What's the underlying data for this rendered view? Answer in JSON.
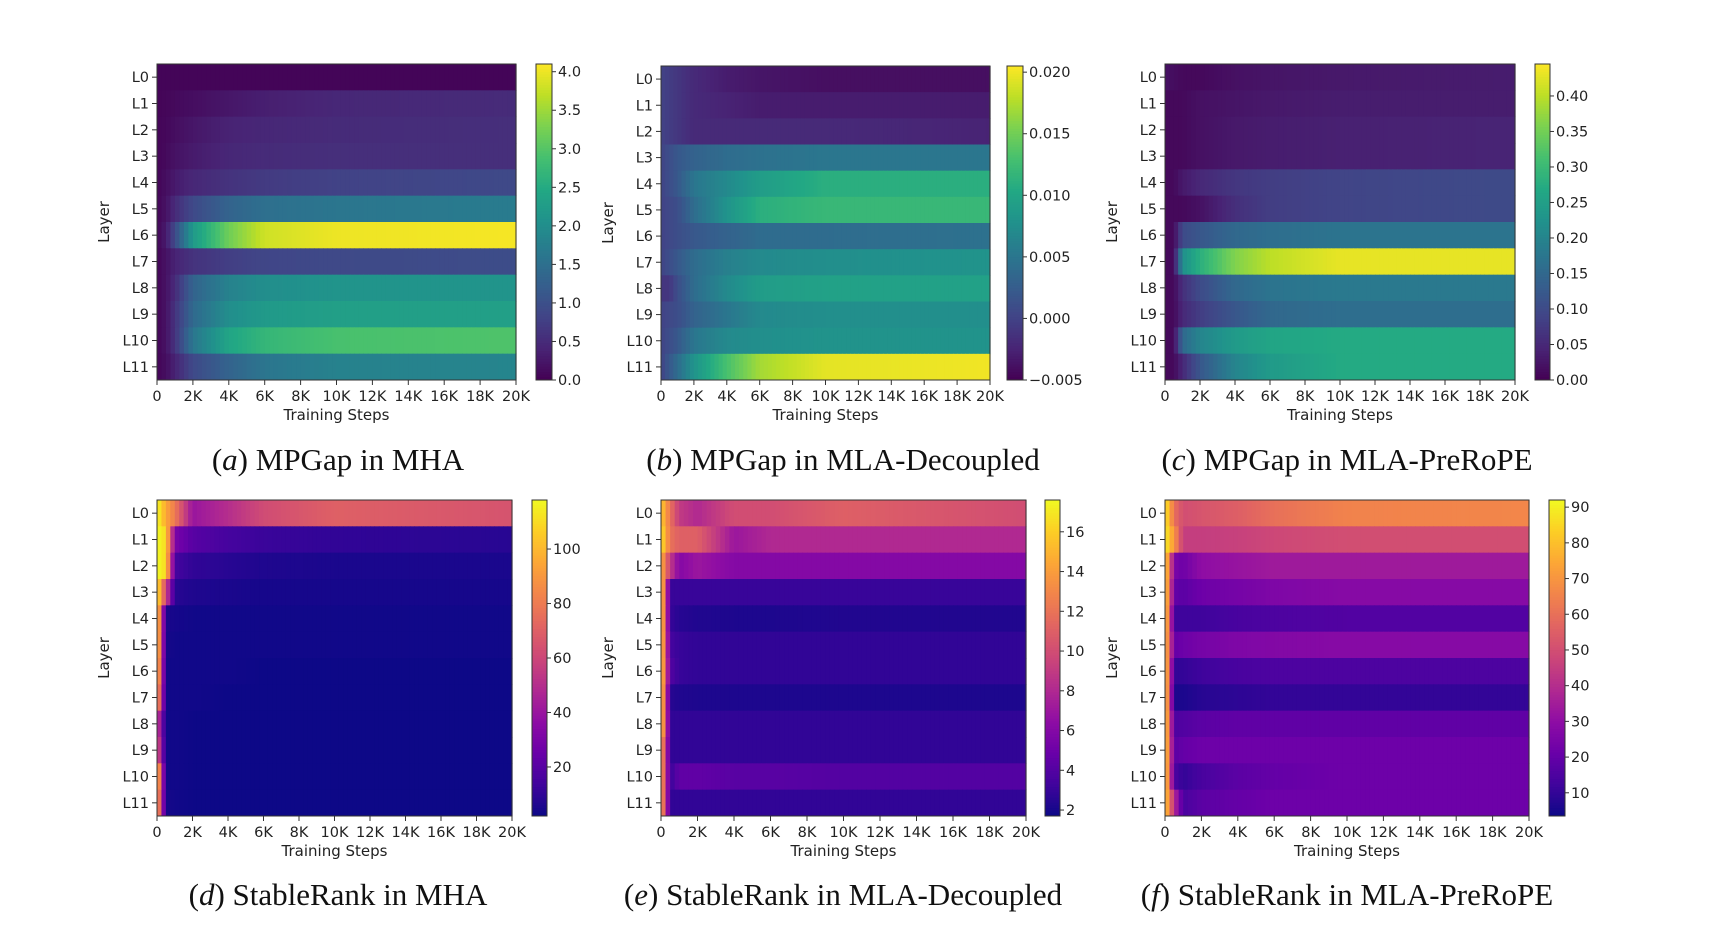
{
  "colors": {
    "viridis": [
      "#440154",
      "#482475",
      "#414487",
      "#355f8d",
      "#2a788e",
      "#21918c",
      "#22a884",
      "#44bf70",
      "#7ad151",
      "#bddf26",
      "#fde725"
    ],
    "plasma": [
      "#0d0887",
      "#41049d",
      "#6a00a8",
      "#8f0da4",
      "#b12a90",
      "#cc4778",
      "#e16462",
      "#f2844b",
      "#fca636",
      "#fcce25",
      "#f0f921"
    ]
  },
  "chart_data": [
    {
      "type": "heatmap",
      "caption_label": "a",
      "caption_text": "MPGap in MHA",
      "colormap": "viridis",
      "xlabel": "Training Steps",
      "ylabel": "Layer",
      "layers": [
        "L0",
        "L1",
        "L2",
        "L3",
        "L4",
        "L5",
        "L6",
        "L7",
        "L8",
        "L9",
        "L10",
        "L11"
      ],
      "xlim": [
        0,
        20000
      ],
      "xticks": [
        0,
        2000,
        4000,
        6000,
        8000,
        10000,
        12000,
        14000,
        16000,
        18000,
        20000
      ],
      "xtick_labels": [
        "0",
        "2K",
        "4K",
        "6K",
        "8K",
        "10K",
        "12K",
        "14K",
        "16K",
        "18K",
        "20K"
      ],
      "steps": [
        0,
        500,
        1000,
        2000,
        4000,
        6000,
        10000,
        20000
      ],
      "clim": [
        0,
        4.1
      ],
      "cbar_ticks": [
        0,
        0.5,
        1,
        1.5,
        2,
        2.5,
        3,
        3.5,
        4
      ],
      "cbar_tick_labels": [
        "0.0",
        "0.5",
        "1.0",
        "1.5",
        "2.0",
        "2.5",
        "3.0",
        "3.5",
        "4.0"
      ],
      "values": [
        [
          0.05,
          0.05,
          0.05,
          0.05,
          0.05,
          0.05,
          0.05,
          0.05
        ],
        [
          0.05,
          0.06,
          0.1,
          0.15,
          0.25,
          0.35,
          0.45,
          0.5
        ],
        [
          0.05,
          0.08,
          0.15,
          0.25,
          0.4,
          0.45,
          0.5,
          0.55
        ],
        [
          0.05,
          0.1,
          0.2,
          0.3,
          0.45,
          0.5,
          0.55,
          0.55
        ],
        [
          0.05,
          0.15,
          0.3,
          0.45,
          0.6,
          0.7,
          0.8,
          0.9
        ],
        [
          0.05,
          0.2,
          0.5,
          0.9,
          1.3,
          1.5,
          1.6,
          1.7
        ],
        [
          0.05,
          0.3,
          0.9,
          2.2,
          3.2,
          3.8,
          4.0,
          4.05
        ],
        [
          0.05,
          0.2,
          0.4,
          0.6,
          0.75,
          0.85,
          0.9,
          0.95
        ],
        [
          0.05,
          0.2,
          0.5,
          1.3,
          1.8,
          2.0,
          2.1,
          2.1
        ],
        [
          0.05,
          0.2,
          0.6,
          1.4,
          2.0,
          2.2,
          2.3,
          2.3
        ],
        [
          0.05,
          0.2,
          0.6,
          1.6,
          2.4,
          2.7,
          2.9,
          2.95
        ],
        [
          0.05,
          0.15,
          0.4,
          0.9,
          1.3,
          1.6,
          1.8,
          1.85
        ]
      ]
    },
    {
      "type": "heatmap",
      "caption_label": "b",
      "caption_text": "MPGap in MLA-Decoupled",
      "colormap": "viridis",
      "xlabel": "Training Steps",
      "ylabel": "Layer",
      "layers": [
        "L0",
        "L1",
        "L2",
        "L3",
        "L4",
        "L5",
        "L6",
        "L7",
        "L8",
        "L9",
        "L10",
        "L11"
      ],
      "xlim": [
        0,
        20000
      ],
      "xticks": [
        0,
        2000,
        4000,
        6000,
        8000,
        10000,
        12000,
        14000,
        16000,
        18000,
        20000
      ],
      "xtick_labels": [
        "0",
        "2K",
        "4K",
        "6K",
        "8K",
        "10K",
        "12K",
        "14K",
        "16K",
        "18K",
        "20K"
      ],
      "steps": [
        0,
        500,
        1000,
        2000,
        4000,
        6000,
        10000,
        20000
      ],
      "clim": [
        -0.005,
        0.0205
      ],
      "cbar_ticks": [
        -0.005,
        0,
        0.005,
        0.01,
        0.015,
        0.02
      ],
      "cbar_tick_labels": [
        "−0.005",
        "0.000",
        "0.005",
        "0.010",
        "0.015",
        "0.020"
      ],
      "values": [
        [
          0,
          -0.0005,
          -0.001,
          -0.002,
          -0.003,
          -0.0035,
          -0.004,
          -0.004
        ],
        [
          0,
          -0.0005,
          -0.001,
          -0.002,
          -0.0025,
          -0.003,
          -0.003,
          -0.003
        ],
        [
          0,
          -0.0005,
          -0.001,
          -0.002,
          -0.002,
          -0.002,
          -0.002,
          -0.0025
        ],
        [
          0,
          0.001,
          0.002,
          0.003,
          0.004,
          0.0045,
          0.005,
          0.005
        ],
        [
          0,
          0.001,
          0.002,
          0.005,
          0.007,
          0.009,
          0.011,
          0.011
        ],
        [
          0,
          0.0005,
          0.001,
          0.004,
          0.008,
          0.011,
          0.012,
          0.012
        ],
        [
          0,
          0.0005,
          0.001,
          0.002,
          0.003,
          0.004,
          0.004,
          0.0045
        ],
        [
          0,
          0.001,
          0.002,
          0.004,
          0.006,
          0.007,
          0.0075,
          0.008
        ],
        [
          -0.001,
          -0.001,
          0.001,
          0.004,
          0.007,
          0.009,
          0.0095,
          0.0095
        ],
        [
          0,
          0.0005,
          0.001,
          0.003,
          0.005,
          0.007,
          0.0075,
          0.0075
        ],
        [
          0,
          0.001,
          0.002,
          0.005,
          0.007,
          0.0075,
          0.008,
          0.008
        ],
        [
          0,
          0.002,
          0.004,
          0.008,
          0.013,
          0.017,
          0.0195,
          0.02
        ]
      ]
    },
    {
      "type": "heatmap",
      "caption_label": "c",
      "caption_text": "MPGap in MLA-PreRoPE",
      "colormap": "viridis",
      "xlabel": "Training Steps",
      "ylabel": "Layer",
      "layers": [
        "L0",
        "L1",
        "L2",
        "L3",
        "L4",
        "L5",
        "L6",
        "L7",
        "L8",
        "L9",
        "L10",
        "L11"
      ],
      "xlim": [
        0,
        20000
      ],
      "xticks": [
        0,
        2000,
        4000,
        6000,
        8000,
        10000,
        12000,
        14000,
        16000,
        18000,
        20000
      ],
      "xtick_labels": [
        "0",
        "2K",
        "4K",
        "6K",
        "8K",
        "10K",
        "12K",
        "14K",
        "16K",
        "18K",
        "20K"
      ],
      "steps": [
        0,
        500,
        1000,
        2000,
        4000,
        6000,
        10000,
        20000
      ],
      "clim": [
        0,
        0.445
      ],
      "cbar_ticks": [
        0,
        0.05,
        0.1,
        0.15,
        0.2,
        0.25,
        0.3,
        0.35,
        0.4
      ],
      "cbar_tick_labels": [
        "0.00",
        "0.05",
        "0.10",
        "0.15",
        "0.20",
        "0.25",
        "0.30",
        "0.35",
        "0.40"
      ],
      "values": [
        [
          0.02,
          0.015,
          0.01,
          0.01,
          0.02,
          0.025,
          0.03,
          0.035
        ],
        [
          0.01,
          0.01,
          0.01,
          0.02,
          0.025,
          0.03,
          0.035,
          0.035
        ],
        [
          0.01,
          0.01,
          0.01,
          0.02,
          0.03,
          0.035,
          0.04,
          0.045
        ],
        [
          0.01,
          0.01,
          0.01,
          0.02,
          0.03,
          0.035,
          0.04,
          0.045
        ],
        [
          0.01,
          0.01,
          0.03,
          0.05,
          0.07,
          0.08,
          0.09,
          0.1
        ],
        [
          0.01,
          0.01,
          0.01,
          0.02,
          0.06,
          0.08,
          0.09,
          0.1
        ],
        [
          0.01,
          0.01,
          0.1,
          0.12,
          0.15,
          0.16,
          0.17,
          0.17
        ],
        [
          0.01,
          0.01,
          0.22,
          0.28,
          0.36,
          0.4,
          0.43,
          0.43
        ],
        [
          0.01,
          0.01,
          0.06,
          0.1,
          0.15,
          0.17,
          0.18,
          0.18
        ],
        [
          0.01,
          0.01,
          0.05,
          0.08,
          0.12,
          0.15,
          0.16,
          0.16
        ],
        [
          0.01,
          0.01,
          0.15,
          0.2,
          0.24,
          0.26,
          0.27,
          0.27
        ],
        [
          0.01,
          0.01,
          0.05,
          0.12,
          0.2,
          0.24,
          0.27,
          0.27
        ]
      ]
    },
    {
      "type": "heatmap",
      "caption_label": "d",
      "caption_text": "StableRank in MHA",
      "colormap": "plasma",
      "xlabel": "Training Steps",
      "ylabel": "Layer",
      "layers": [
        "L0",
        "L1",
        "L2",
        "L3",
        "L4",
        "L5",
        "L6",
        "L7",
        "L8",
        "L9",
        "L10",
        "L11"
      ],
      "xlim": [
        0,
        20000
      ],
      "xticks": [
        0,
        2000,
        4000,
        6000,
        8000,
        10000,
        12000,
        14000,
        16000,
        18000,
        20000
      ],
      "xtick_labels": [
        "0",
        "2K",
        "4K",
        "6K",
        "8K",
        "10K",
        "12K",
        "14K",
        "16K",
        "18K",
        "20K"
      ],
      "steps": [
        0,
        500,
        1000,
        2000,
        4000,
        6000,
        10000,
        20000
      ],
      "clim": [
        2,
        118
      ],
      "cbar_ticks": [
        20,
        40,
        60,
        80,
        100
      ],
      "cbar_tick_labels": [
        "20",
        "40",
        "60",
        "80",
        "100"
      ],
      "values": [
        [
          118,
          95,
          80,
          40,
          50,
          62,
          70,
          65
        ],
        [
          118,
          110,
          30,
          20,
          15,
          12,
          10,
          8
        ],
        [
          118,
          110,
          15,
          10,
          8,
          6,
          5,
          5
        ],
        [
          115,
          60,
          8,
          6,
          5,
          4,
          4,
          4
        ],
        [
          115,
          5,
          4,
          3,
          3,
          3,
          3,
          3
        ],
        [
          115,
          4,
          3,
          3,
          3,
          3,
          3,
          3
        ],
        [
          110,
          3,
          3,
          3,
          3,
          2,
          2,
          2
        ],
        [
          100,
          3,
          3,
          3,
          2,
          2,
          2,
          2
        ],
        [
          60,
          3,
          3,
          2,
          2,
          2,
          2,
          2
        ],
        [
          70,
          3,
          3,
          2,
          2,
          2,
          2,
          2
        ],
        [
          110,
          3,
          3,
          2,
          2,
          2,
          2,
          2
        ],
        [
          100,
          4,
          3,
          2,
          2,
          2,
          2,
          2
        ]
      ]
    },
    {
      "type": "heatmap",
      "caption_label": "e",
      "caption_text": "StableRank in MLA-Decoupled",
      "colormap": "plasma",
      "xlabel": "Training Steps",
      "ylabel": "Layer",
      "layers": [
        "L0",
        "L1",
        "L2",
        "L3",
        "L4",
        "L5",
        "L6",
        "L7",
        "L8",
        "L9",
        "L10",
        "L11"
      ],
      "xlim": [
        0,
        20000
      ],
      "xticks": [
        0,
        2000,
        4000,
        6000,
        8000,
        10000,
        12000,
        14000,
        16000,
        18000,
        20000
      ],
      "xtick_labels": [
        "0",
        "2K",
        "4K",
        "6K",
        "8K",
        "10K",
        "12K",
        "14K",
        "16K",
        "18K",
        "20K"
      ],
      "steps": [
        0,
        500,
        1000,
        2000,
        4000,
        6000,
        10000,
        20000
      ],
      "clim": [
        1.7,
        17.6
      ],
      "cbar_ticks": [
        2,
        4,
        6,
        8,
        10,
        12,
        14,
        16
      ],
      "cbar_tick_labels": [
        "2",
        "4",
        "6",
        "8",
        "10",
        "12",
        "14",
        "16"
      ],
      "values": [
        [
          16,
          12,
          9,
          8,
          10,
          10,
          11,
          10
        ],
        [
          17,
          12,
          11,
          11,
          7,
          8,
          8,
          8
        ],
        [
          15,
          9,
          6,
          7,
          6,
          6,
          6,
          6
        ],
        [
          17,
          3,
          3,
          3,
          3,
          3,
          3,
          3
        ],
        [
          17,
          3,
          2.5,
          2.3,
          2.2,
          2.2,
          2.3,
          2.3
        ],
        [
          17,
          3.5,
          3,
          2.8,
          2.8,
          2.8,
          2.8,
          2.8
        ],
        [
          17,
          4,
          3,
          2.8,
          2.8,
          2.8,
          2.8,
          2.8
        ],
        [
          17,
          2.5,
          2.3,
          2.2,
          2.2,
          2.2,
          2.2,
          2.2
        ],
        [
          17,
          2.8,
          2.8,
          2.8,
          2.8,
          2.8,
          2.8,
          2.8
        ],
        [
          15,
          2.8,
          2.8,
          2.8,
          2.8,
          2.8,
          2.8,
          2.8
        ],
        [
          15,
          3,
          4.5,
          4.5,
          4.2,
          4.2,
          4,
          4
        ],
        [
          15,
          2.8,
          2.8,
          2.8,
          2.8,
          2.8,
          2.8,
          2.8
        ]
      ]
    },
    {
      "type": "heatmap",
      "caption_label": "f",
      "caption_text": "StableRank in MLA-PreRoPE",
      "colormap": "plasma",
      "xlabel": "Training Steps",
      "ylabel": "Layer",
      "layers": [
        "L0",
        "L1",
        "L2",
        "L3",
        "L4",
        "L5",
        "L6",
        "L7",
        "L8",
        "L9",
        "L10",
        "L11"
      ],
      "xlim": [
        0,
        20000
      ],
      "xticks": [
        0,
        2000,
        4000,
        6000,
        8000,
        10000,
        12000,
        14000,
        16000,
        18000,
        20000
      ],
      "xtick_labels": [
        "0",
        "2K",
        "4K",
        "6K",
        "8K",
        "10K",
        "12K",
        "14K",
        "16K",
        "18K",
        "20K"
      ],
      "steps": [
        0,
        500,
        1000,
        2000,
        4000,
        6000,
        10000,
        20000
      ],
      "clim": [
        3.5,
        92
      ],
      "cbar_ticks": [
        10,
        20,
        30,
        40,
        50,
        60,
        70,
        80,
        90
      ],
      "cbar_tick_labels": [
        "10",
        "20",
        "30",
        "40",
        "50",
        "60",
        "70",
        "80",
        "90"
      ],
      "values": [
        [
          90,
          60,
          50,
          52,
          55,
          60,
          65,
          66
        ],
        [
          90,
          70,
          45,
          45,
          46,
          48,
          50,
          50
        ],
        [
          90,
          25,
          22,
          30,
          32,
          34,
          34,
          34
        ],
        [
          90,
          20,
          18,
          22,
          24,
          26,
          28,
          28
        ],
        [
          90,
          12,
          12,
          12,
          14,
          15,
          16,
          16
        ],
        [
          85,
          20,
          22,
          24,
          26,
          27,
          28,
          28
        ],
        [
          90,
          10,
          10,
          12,
          14,
          15,
          15,
          15
        ],
        [
          90,
          6,
          6,
          8,
          9,
          10,
          10,
          10
        ],
        [
          90,
          15,
          16,
          18,
          19,
          19,
          19,
          19
        ],
        [
          90,
          18,
          20,
          22,
          22,
          22,
          22,
          22
        ],
        [
          90,
          15,
          10,
          14,
          18,
          20,
          22,
          22
        ],
        [
          85,
          40,
          14,
          18,
          20,
          22,
          22,
          22
        ]
      ]
    }
  ]
}
